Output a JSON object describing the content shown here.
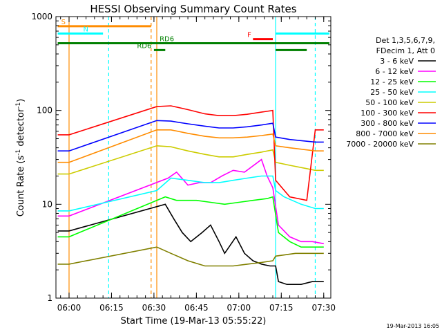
{
  "chart_data": {
    "type": "line",
    "title": "HESSI Observing Summary Count Rates",
    "xlabel": "Start Time (19-Mar-13 05:55:22)",
    "ylabel": "Count Rate (s⁻¹ detector⁻¹)",
    "yscale": "log",
    "ylim": [
      1,
      1000
    ],
    "xlim": [
      "05:55:22",
      "07:32:30"
    ],
    "x_ticks": [
      "06:00",
      "06:15",
      "06:30",
      "06:45",
      "07:00",
      "07:15",
      "07:30"
    ],
    "y_ticks": [
      "1",
      "10",
      "100",
      "1000"
    ],
    "legend_header": [
      "Det 1,3,5,6,7,9,",
      "FDecim 1, Att 0"
    ],
    "legend_position": "right",
    "timestamp": "19-Mar-2013 16:05",
    "series": [
      {
        "name": "3 - 6 keV",
        "color": "#000000",
        "points": [
          [
            "05:56",
            5.2
          ],
          [
            "06:00",
            5.2
          ],
          [
            "06:34",
            10
          ],
          [
            "06:37",
            7
          ],
          [
            "06:40",
            5
          ],
          [
            "06:43",
            4
          ],
          [
            "06:47",
            5
          ],
          [
            "06:50",
            6
          ],
          [
            "06:53",
            4
          ],
          [
            "06:55",
            3
          ],
          [
            "06:59",
            4.5
          ],
          [
            "07:02",
            3
          ],
          [
            "07:05",
            2.5
          ],
          [
            "07:08",
            2.3
          ],
          [
            "07:11",
            2.2
          ],
          [
            "07:13",
            2.2
          ],
          [
            "07:14",
            1.5
          ],
          [
            "07:17",
            1.4
          ],
          [
            "07:22",
            1.4
          ],
          [
            "07:26",
            1.5
          ],
          [
            "07:30",
            1.5
          ]
        ]
      },
      {
        "name": "6 - 12 keV",
        "color": "#ff00ff",
        "points": [
          [
            "05:56",
            7.5
          ],
          [
            "06:00",
            7.5
          ],
          [
            "06:35",
            19
          ],
          [
            "06:38",
            22
          ],
          [
            "06:42",
            16
          ],
          [
            "06:46",
            17
          ],
          [
            "06:50",
            17
          ],
          [
            "06:54",
            20
          ],
          [
            "06:58",
            23
          ],
          [
            "07:02",
            22
          ],
          [
            "07:06",
            27
          ],
          [
            "07:08",
            30
          ],
          [
            "07:10",
            20
          ],
          [
            "07:12",
            15
          ],
          [
            "07:14",
            6
          ],
          [
            "07:18",
            4.5
          ],
          [
            "07:22",
            4
          ],
          [
            "07:26",
            4
          ],
          [
            "07:30",
            3.8
          ]
        ]
      },
      {
        "name": "12 - 25 keV",
        "color": "#00ff00",
        "points": [
          [
            "05:56",
            4.5
          ],
          [
            "06:00",
            4.5
          ],
          [
            "06:34",
            12
          ],
          [
            "06:38",
            11
          ],
          [
            "06:45",
            11
          ],
          [
            "06:50",
            10.5
          ],
          [
            "06:55",
            10
          ],
          [
            "07:00",
            10.5
          ],
          [
            "07:05",
            11
          ],
          [
            "07:10",
            11.5
          ],
          [
            "07:12",
            12
          ],
          [
            "07:14",
            5
          ],
          [
            "07:18",
            4
          ],
          [
            "07:22",
            3.5
          ],
          [
            "07:30",
            3.5
          ]
        ]
      },
      {
        "name": "25 - 50 keV",
        "color": "#00ffff",
        "points": [
          [
            "05:56",
            8.5
          ],
          [
            "06:00",
            8.5
          ],
          [
            "06:31",
            14
          ],
          [
            "06:36",
            19
          ],
          [
            "06:42",
            18
          ],
          [
            "06:48",
            17
          ],
          [
            "06:53",
            17
          ],
          [
            "06:58",
            18
          ],
          [
            "07:03",
            19
          ],
          [
            "07:08",
            20
          ],
          [
            "07:12",
            20
          ],
          [
            "07:13",
            14
          ],
          [
            "07:16",
            12
          ],
          [
            "07:22",
            10
          ],
          [
            "07:27",
            9
          ],
          [
            "07:30",
            9
          ]
        ]
      },
      {
        "name": "50 - 100 keV",
        "color": "#cccc00",
        "points": [
          [
            "05:56",
            21
          ],
          [
            "06:00",
            21
          ],
          [
            "06:31",
            42
          ],
          [
            "06:36",
            41
          ],
          [
            "06:42",
            37
          ],
          [
            "06:48",
            34
          ],
          [
            "06:53",
            32
          ],
          [
            "06:58",
            32
          ],
          [
            "07:03",
            34
          ],
          [
            "07:08",
            36
          ],
          [
            "07:12",
            38
          ],
          [
            "07:13",
            28
          ],
          [
            "07:18",
            26
          ],
          [
            "07:24",
            24
          ],
          [
            "07:27",
            23
          ],
          [
            "07:30",
            23
          ]
        ]
      },
      {
        "name": "100 - 300 keV",
        "color": "#ff0000",
        "points": [
          [
            "05:56",
            55
          ],
          [
            "06:00",
            55
          ],
          [
            "06:31",
            110
          ],
          [
            "06:36",
            112
          ],
          [
            "06:42",
            102
          ],
          [
            "06:48",
            92
          ],
          [
            "06:53",
            88
          ],
          [
            "06:58",
            88
          ],
          [
            "07:03",
            91
          ],
          [
            "07:08",
            96
          ],
          [
            "07:12",
            100
          ],
          [
            "07:13",
            18
          ],
          [
            "07:18",
            12
          ],
          [
            "07:24",
            11
          ],
          [
            "07:27",
            62
          ],
          [
            "07:30",
            62
          ]
        ]
      },
      {
        "name": "300 - 800 keV",
        "color": "#0000ff",
        "points": [
          [
            "05:56",
            37
          ],
          [
            "06:00",
            37
          ],
          [
            "06:31",
            78
          ],
          [
            "06:36",
            77
          ],
          [
            "06:42",
            72
          ],
          [
            "06:48",
            68
          ],
          [
            "06:53",
            65
          ],
          [
            "06:58",
            65
          ],
          [
            "07:03",
            67
          ],
          [
            "07:08",
            70
          ],
          [
            "07:12",
            73
          ],
          [
            "07:13",
            52
          ],
          [
            "07:18",
            49
          ],
          [
            "07:24",
            47
          ],
          [
            "07:27",
            46
          ],
          [
            "07:30",
            46
          ]
        ]
      },
      {
        "name": "800 - 7000 keV",
        "color": "#ff8c00",
        "points": [
          [
            "05:56",
            28
          ],
          [
            "06:00",
            28
          ],
          [
            "06:31",
            62
          ],
          [
            "06:36",
            62
          ],
          [
            "06:42",
            57
          ],
          [
            "06:48",
            53
          ],
          [
            "06:53",
            51
          ],
          [
            "06:58",
            51
          ],
          [
            "07:03",
            52
          ],
          [
            "07:08",
            54
          ],
          [
            "07:12",
            56
          ],
          [
            "07:13",
            42
          ],
          [
            "07:18",
            40
          ],
          [
            "07:24",
            38
          ],
          [
            "07:27",
            37
          ],
          [
            "07:30",
            37
          ]
        ]
      },
      {
        "name": "7000 - 20000 keV",
        "color": "#808000",
        "points": [
          [
            "05:56",
            2.3
          ],
          [
            "06:00",
            2.3
          ],
          [
            "06:31",
            3.5
          ],
          [
            "06:36",
            3
          ],
          [
            "06:42",
            2.5
          ],
          [
            "06:48",
            2.2
          ],
          [
            "06:53",
            2.2
          ],
          [
            "06:58",
            2.2
          ],
          [
            "07:03",
            2.3
          ],
          [
            "07:08",
            2.4
          ],
          [
            "07:12",
            2.5
          ],
          [
            "07:13",
            2.8
          ],
          [
            "07:20",
            3
          ],
          [
            "07:30",
            3
          ]
        ]
      }
    ],
    "flag_bars": [
      {
        "label": "S",
        "color": "#ff8c00",
        "level": 790,
        "segments": [
          [
            "05:56",
            "06:29"
          ]
        ]
      },
      {
        "label": "N",
        "color": "#00ffff",
        "level": 660,
        "segments": [
          [
            "05:56",
            "06:12"
          ],
          [
            "07:13",
            "07:32"
          ]
        ]
      },
      {
        "label": "F",
        "color": "#ff0000",
        "level": 575,
        "segments": [
          [
            "07:05",
            "07:12"
          ]
        ]
      },
      {
        "label": "RD6",
        "color": "#008000",
        "level": 520,
        "segments": [
          [
            "05:56",
            "07:32"
          ]
        ]
      },
      {
        "label": "RD6",
        "color": "#008000",
        "level": 440,
        "segments": [
          [
            "06:30",
            "06:34"
          ],
          [
            "07:13",
            "07:24"
          ]
        ]
      }
    ],
    "vertical_lines": [
      {
        "color": "#ff8c00",
        "time": "06:00",
        "style": "solid"
      },
      {
        "color": "#00ffff",
        "time": "06:14",
        "style": "dashed"
      },
      {
        "color": "#ff8c00",
        "time": "06:29",
        "style": "dashed"
      },
      {
        "color": "#ff8c00",
        "time": "06:31",
        "style": "solid"
      },
      {
        "color": "#00ffff",
        "time": "07:13",
        "style": "solid"
      },
      {
        "color": "#00ffff",
        "time": "07:27",
        "style": "dashed"
      }
    ]
  }
}
